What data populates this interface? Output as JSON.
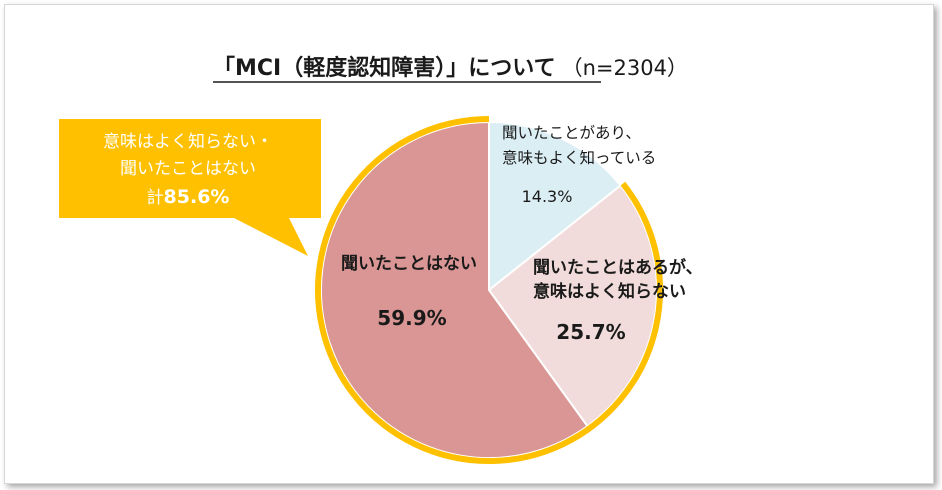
{
  "chart_data": {
    "type": "pie",
    "title": "「MCI（軽度認知障害）」について",
    "subtitle": "（n=2304）",
    "slices": [
      {
        "label_lines": [
          "聞いたことがあり、",
          "意味もよく知っている"
        ],
        "value": 14.3,
        "value_label": "14.3%",
        "color": "#dbeef4"
      },
      {
        "label_lines": [
          "聞いたことはあるが、",
          "意味はよく知らない"
        ],
        "value": 25.7,
        "value_label": "25.7%",
        "color": "#f2dcdb"
      },
      {
        "label_lines": [
          "聞いたことはない"
        ],
        "value": 59.9,
        "value_label": "59.9%",
        "color": "#d99694"
      }
    ],
    "callout": {
      "lines": [
        "意味はよく知らない・",
        "聞いたことはない"
      ],
      "total_prefix": "計",
      "total_value": "85.6%"
    },
    "colors": {
      "highlight_ring": "#ffc000",
      "callout_bg": "#ffc000",
      "slice_border": "#ffffff"
    }
  }
}
